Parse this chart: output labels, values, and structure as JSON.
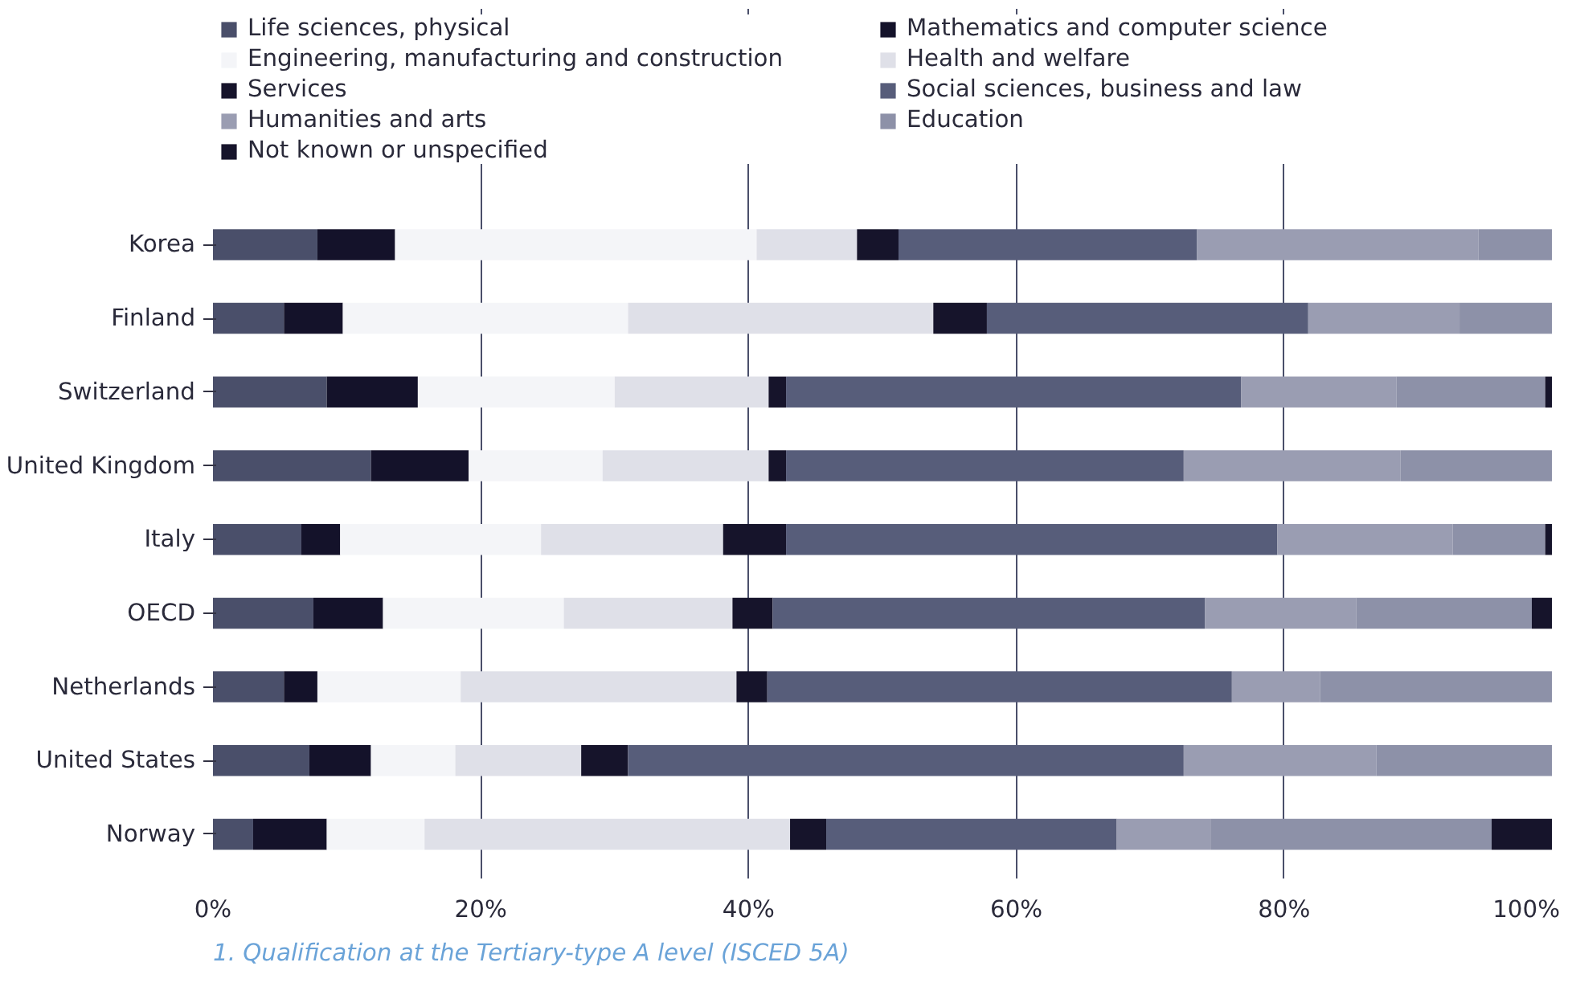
{
  "chart_data": {
    "type": "bar",
    "orientation": "horizontal",
    "stacked": true,
    "categories": [
      "Korea",
      "Finland",
      "Switzerland",
      "United Kingdom",
      "Italy",
      "OECD",
      "Netherlands",
      "United States",
      "Norway"
    ],
    "series": [
      {
        "name": "Life sciences, physical",
        "color": "#4a4f6a",
        "values": [
          7.8,
          5.3,
          8.5,
          11.8,
          6.6,
          7.5,
          5.3,
          7.2,
          3.0
        ]
      },
      {
        "name": "Mathematics and computer science",
        "color": "#14122a",
        "values": [
          5.8,
          4.4,
          6.8,
          7.3,
          2.9,
          5.2,
          2.5,
          4.6,
          5.5
        ]
      },
      {
        "name": "Engineering, manufacturing and construction",
        "color": "#f4f5f8",
        "values": [
          27.0,
          21.3,
          14.7,
          10.0,
          15.0,
          13.5,
          10.7,
          6.3,
          7.3
        ]
      },
      {
        "name": "Health and welfare",
        "color": "#dfe0e8",
        "values": [
          7.5,
          22.8,
          11.5,
          12.4,
          13.6,
          12.6,
          20.6,
          9.4,
          27.3
        ]
      },
      {
        "name": "Services",
        "color": "#16142b",
        "values": [
          3.1,
          4.0,
          1.3,
          1.3,
          4.7,
          3.0,
          2.3,
          3.5,
          2.7
        ]
      },
      {
        "name": "Social sciences, business and law",
        "color": "#575d7a",
        "values": [
          22.3,
          24.0,
          34.0,
          29.7,
          36.7,
          32.3,
          34.7,
          41.5,
          21.7
        ]
      },
      {
        "name": "Humanities and arts",
        "color": "#9a9db2",
        "values": [
          21.0,
          11.3,
          11.6,
          16.2,
          13.1,
          11.3,
          6.6,
          14.4,
          7.0
        ]
      },
      {
        "name": "Education",
        "color": "#8d91a8",
        "values": [
          5.5,
          6.9,
          11.1,
          11.3,
          6.9,
          13.1,
          17.3,
          13.1,
          21.0
        ]
      },
      {
        "name": "Not known or unspecified",
        "color": "#16142b",
        "values": [
          0,
          0,
          0.5,
          0,
          0.5,
          1.5,
          0,
          0,
          4.5
        ]
      }
    ],
    "xlim": [
      0,
      100
    ],
    "xticks": [
      {
        "value": 0,
        "label": "0%"
      },
      {
        "value": 20,
        "label": "20%"
      },
      {
        "value": 40,
        "label": "40%"
      },
      {
        "value": 60,
        "label": "60%"
      },
      {
        "value": 80,
        "label": "80%"
      },
      {
        "value": 100,
        "label": "100%"
      }
    ],
    "grid": "x",
    "legend": "top",
    "annotations": [
      "1. Qualification at the Tertiary-type A level (ISCED 5A)"
    ]
  }
}
